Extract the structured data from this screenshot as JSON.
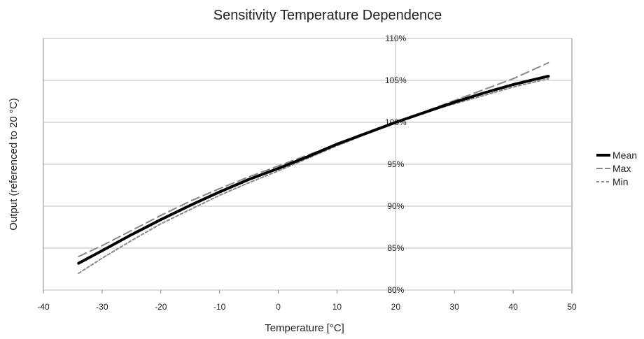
{
  "chart_data": {
    "type": "line",
    "title": "Sensitivity Temperature Dependence",
    "xlabel": "Temperature [°C]",
    "ylabel": "Output (referenced to 20 °C)",
    "xlim": [
      -40,
      50
    ],
    "ylim": [
      80,
      110
    ],
    "x_ticks": [
      -40,
      -30,
      -20,
      -10,
      0,
      10,
      20,
      30,
      40,
      50
    ],
    "y_ticks": [
      80,
      85,
      90,
      95,
      100,
      105,
      110
    ],
    "x_tick_labels": [
      "-40",
      "-30",
      "-20",
      "-10",
      "0",
      "10",
      "20",
      "30",
      "40",
      "50"
    ],
    "y_tick_labels": [
      "80%",
      "85%",
      "90%",
      "95%",
      "100%",
      "105%",
      "110%"
    ],
    "grid": true,
    "legend_position": "right",
    "x": [
      -34,
      -30,
      -25,
      -20,
      -15,
      -10,
      -5,
      0,
      5,
      10,
      15,
      20,
      25,
      30,
      35,
      40,
      46
    ],
    "series": [
      {
        "name": "Mean",
        "color": "#000000",
        "style": "solid-thick",
        "values": [
          83.2,
          84.7,
          86.6,
          88.4,
          90.1,
          91.7,
          93.2,
          94.5,
          95.9,
          97.4,
          98.7,
          100.0,
          101.2,
          102.4,
          103.5,
          104.5,
          105.5
        ]
      },
      {
        "name": "Max",
        "color": "#888888",
        "style": "dashed-long",
        "values": [
          84.0,
          85.3,
          87.1,
          88.9,
          90.6,
          92.1,
          93.5,
          94.8,
          96.1,
          97.4,
          98.7,
          100.0,
          101.3,
          102.6,
          103.9,
          105.2,
          107.1
        ]
      },
      {
        "name": "Min",
        "color": "#888888",
        "style": "dashed-short",
        "values": [
          82.0,
          83.8,
          85.9,
          87.9,
          89.6,
          91.3,
          92.8,
          94.2,
          95.7,
          97.2,
          98.6,
          100.0,
          101.2,
          102.2,
          103.2,
          104.2,
          105.2
        ]
      }
    ]
  }
}
